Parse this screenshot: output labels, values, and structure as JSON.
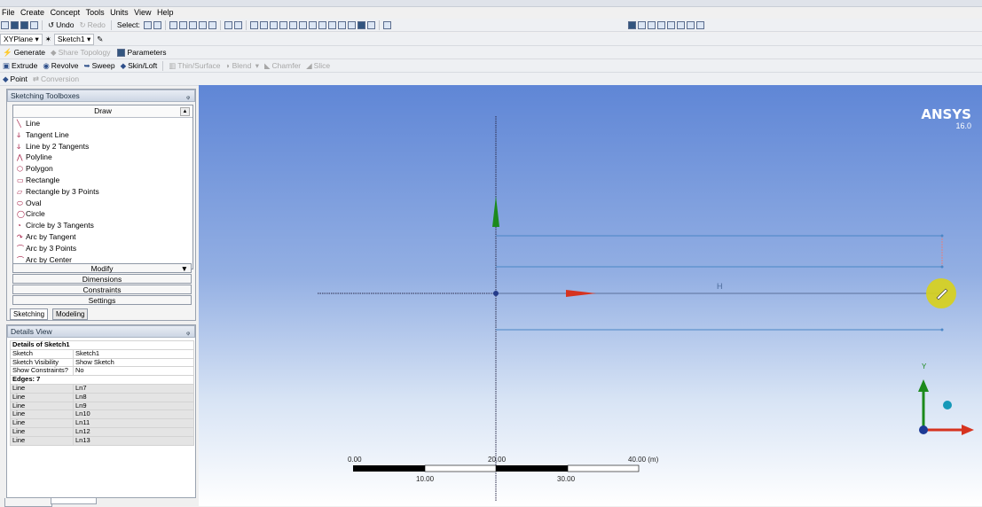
{
  "menu": [
    "File",
    "Create",
    "Concept",
    "Tools",
    "Units",
    "View",
    "Help"
  ],
  "toolbar1": {
    "undo": "Undo",
    "redo": "Redo",
    "select_label": "Select:"
  },
  "toolbar2": {
    "plane": "XYPlane",
    "sketch": "Sketch1"
  },
  "toolbar3": {
    "generate": "Generate",
    "share_topology": "Share Topology",
    "parameters": "Parameters"
  },
  "toolbar4": {
    "extrude": "Extrude",
    "revolve": "Revolve",
    "sweep": "Sweep",
    "skin_loft": "Skin/Loft",
    "thin_surface": "Thin/Surface",
    "blend": "Blend",
    "chamfer": "Chamfer",
    "slice": "Slice"
  },
  "toolbar5": {
    "point": "Point",
    "conversion": "Conversion"
  },
  "sketching_toolboxes": {
    "title": "Sketching Toolboxes",
    "pin": "ᵩ",
    "draw_header": "Draw",
    "tools": [
      "Line",
      "Tangent Line",
      "Line by 2 Tangents",
      "Polyline",
      "Polygon",
      "Rectangle",
      "Rectangle by 3 Points",
      "Oval",
      "Circle",
      "Circle by 3 Tangents",
      "Arc by Tangent",
      "Arc by 3 Points",
      "Arc by Center"
    ],
    "sections": [
      "Modify",
      "Dimensions",
      "Constraints",
      "Settings"
    ],
    "tabs": [
      "Sketching",
      "Modeling"
    ]
  },
  "details_view": {
    "title": "Details View",
    "pin": "ᵩ",
    "group_header": "Details of Sketch1",
    "rows": [
      {
        "k": "Sketch",
        "v": "Sketch1"
      },
      {
        "k": "Sketch Visibility",
        "v": "Show Sketch"
      },
      {
        "k": "Show Constraints?",
        "v": "No"
      }
    ],
    "edges_header": "Edges: 7",
    "edges": [
      {
        "k": "Line",
        "v": "Ln7"
      },
      {
        "k": "Line",
        "v": "Ln8"
      },
      {
        "k": "Line",
        "v": "Ln9"
      },
      {
        "k": "Line",
        "v": "Ln10"
      },
      {
        "k": "Line",
        "v": "Ln11"
      },
      {
        "k": "Line",
        "v": "Ln12"
      },
      {
        "k": "Line",
        "v": "Ln13"
      }
    ]
  },
  "viewport": {
    "logo": "ANSYS",
    "version": "16.0",
    "axis_y_label": "Y",
    "constraint_marker": "H",
    "scale": {
      "top_labels": [
        "0.00",
        "20.00",
        "40.00 (m)"
      ],
      "bottom_labels": [
        "10.00",
        "30.00"
      ]
    }
  },
  "icons": {
    "undo": "undo-icon",
    "redo": "redo-icon",
    "generate": "lightning-icon",
    "extrude": "extrude-icon",
    "revolve": "revolve-icon",
    "sweep": "sweep-icon",
    "point": "point-icon"
  },
  "colors": {
    "viewport_top": "#5f86d6",
    "sketch_line": "#4a86c6",
    "axis_green": "#1c8a1c",
    "axis_red": "#d6331f",
    "cursor_yellow": "#d8d11a"
  }
}
